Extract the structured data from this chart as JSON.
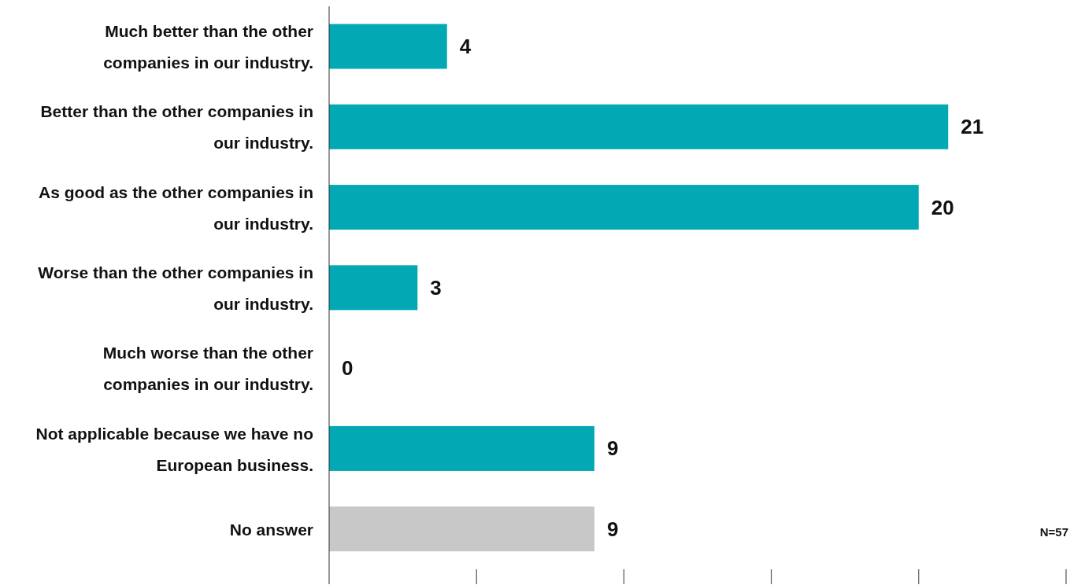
{
  "chart_data": {
    "type": "bar",
    "orientation": "horizontal",
    "categories": [
      "Much better than the other companies in our industry.",
      "Better than the other companies in our industry.",
      "As good as the other companies in our industry.",
      "Worse than the other companies in our industry.",
      "Much worse than the other companies in our industry.",
      "Not applicable because we have no European business.",
      "No answer"
    ],
    "values": [
      4,
      21,
      20,
      3,
      0,
      9,
      9
    ],
    "colors": [
      "#02a9b5",
      "#02a9b5",
      "#02a9b5",
      "#02a9b5",
      "#02a9b5",
      "#02a9b5",
      "#c8c8c8"
    ],
    "xlim": [
      0,
      25
    ],
    "tick_labels": "y",
    "data_labels": true,
    "annotations": [
      "N=57"
    ]
  }
}
